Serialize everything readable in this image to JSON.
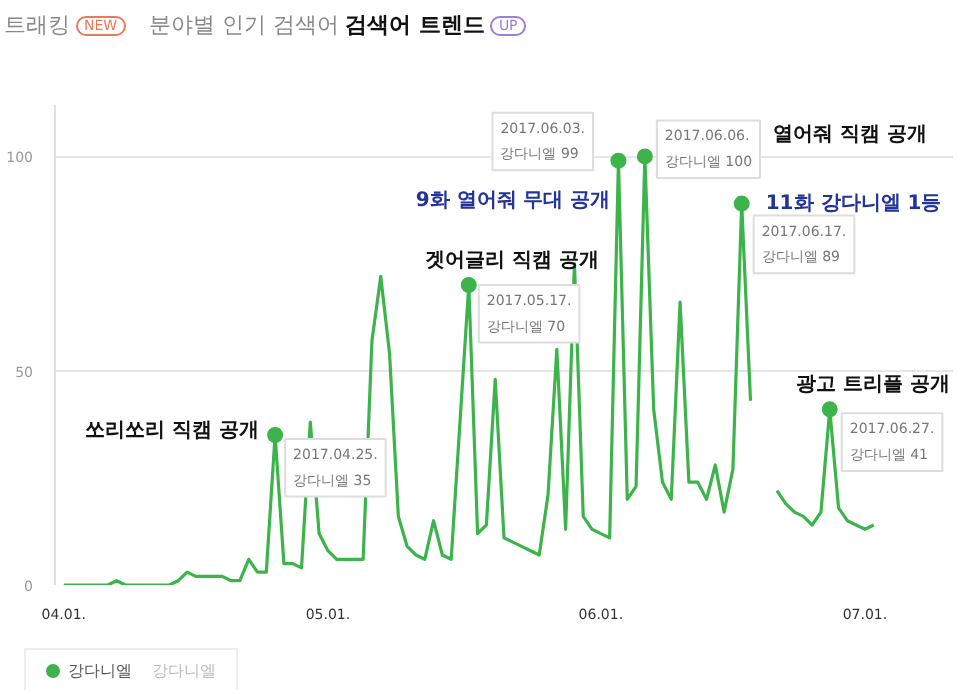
{
  "chart_data": {
    "type": "line",
    "x": [
      "2017-04-01",
      "2017-04-02",
      "2017-04-03",
      "2017-04-04",
      "2017-04-05",
      "2017-04-06",
      "2017-04-07",
      "2017-04-08",
      "2017-04-09",
      "2017-04-10",
      "2017-04-11",
      "2017-04-12",
      "2017-04-13",
      "2017-04-14",
      "2017-04-15",
      "2017-04-16",
      "2017-04-17",
      "2017-04-18",
      "2017-04-19",
      "2017-04-20",
      "2017-04-21",
      "2017-04-22",
      "2017-04-23",
      "2017-04-24",
      "2017-04-25",
      "2017-04-26",
      "2017-04-27",
      "2017-04-28",
      "2017-04-29",
      "2017-04-30",
      "2017-05-01",
      "2017-05-02",
      "2017-05-03",
      "2017-05-04",
      "2017-05-05",
      "2017-05-06",
      "2017-05-07",
      "2017-05-08",
      "2017-05-09",
      "2017-05-10",
      "2017-05-11",
      "2017-05-12",
      "2017-05-13",
      "2017-05-14",
      "2017-05-15",
      "2017-05-16",
      "2017-05-17",
      "2017-05-18",
      "2017-05-19",
      "2017-05-20",
      "2017-05-21",
      "2017-05-22",
      "2017-05-23",
      "2017-05-24",
      "2017-05-25",
      "2017-05-26",
      "2017-05-27",
      "2017-05-28",
      "2017-05-29",
      "2017-05-30",
      "2017-05-31",
      "2017-06-01",
      "2017-06-02",
      "2017-06-03",
      "2017-06-04",
      "2017-06-05",
      "2017-06-06",
      "2017-06-07",
      "2017-06-08",
      "2017-06-09",
      "2017-06-10",
      "2017-06-11",
      "2017-06-12",
      "2017-06-13",
      "2017-06-14",
      "2017-06-15",
      "2017-06-16",
      "2017-06-17",
      "2017-06-18",
      "2017-06-19",
      "2017-06-20",
      "2017-06-21",
      "2017-06-22",
      "2017-06-23",
      "2017-06-24",
      "2017-06-25",
      "2017-06-26",
      "2017-06-27",
      "2017-06-28",
      "2017-06-29",
      "2017-06-30",
      "2017-07-01",
      "2017-07-02"
    ],
    "series": [
      {
        "name": "강다니엘",
        "color": "#3cb44b",
        "values": [
          0,
          0,
          0,
          0,
          0,
          0,
          1,
          0,
          0,
          0,
          0,
          0,
          0,
          1,
          3,
          2,
          2,
          2,
          2,
          1,
          1,
          6,
          3,
          3,
          35,
          5,
          5,
          4,
          38,
          12,
          8,
          6,
          6,
          6,
          6,
          57,
          72,
          54,
          16,
          9,
          7,
          6,
          15,
          7,
          6,
          38,
          70,
          12,
          14,
          48,
          11,
          10,
          9,
          8,
          7,
          21,
          55,
          13,
          75,
          16,
          13,
          12,
          11,
          99,
          20,
          23,
          100,
          41,
          24,
          20,
          66,
          24,
          24,
          20,
          28,
          17,
          27,
          89,
          43,
          null,
          null,
          22,
          19,
          17,
          16,
          14,
          17,
          41,
          18,
          15,
          14,
          13,
          14
        ]
      }
    ],
    "xlim": [
      "2017-03-31",
      "2017-07-11"
    ],
    "xticks": [
      {
        "value": "2017-04-01",
        "label": "04.01."
      },
      {
        "value": "2017-05-01",
        "label": "05.01."
      },
      {
        "value": "2017-06-01",
        "label": "06.01."
      },
      {
        "value": "2017-07-01",
        "label": "07.01."
      }
    ],
    "ylim": [
      0,
      112
    ],
    "yticks": [
      0,
      50,
      100
    ],
    "grid": "y",
    "legend": "bottom left",
    "marker": "none",
    "line_style": "solid",
    "annotations": [
      "트래킹",
      "NEW",
      "분야별 인기 검색어",
      "검색어 트렌드",
      "UP",
      "강다니엘",
      {
        "text": "쏘리쏘리 직캠 공개",
        "x": "2017-04-25",
        "y": 35
      },
      {
        "text": "겟어글리 직캠 공개",
        "x": "2017-05-17",
        "y": 70
      },
      {
        "text": "9화 열어줘 무대 공개",
        "x": "2017-06-03",
        "y": 99
      },
      "열어줘 직캠 공개",
      {
        "text": "11화 강다니엘 1등",
        "x": "2017-06-17",
        "y": 89
      },
      {
        "text": "광고 트리플 공개",
        "x": "2017-06-27",
        "y": 41
      },
      {
        "text": "2017.04.25.\n강다니엘 35",
        "x": "2017-04-25",
        "y": 35
      },
      {
        "text": "2017.05.17.\n강다니엘 70",
        "x": "2017-05-17",
        "y": 70
      },
      {
        "text": "2017.06.03.\n강다니엘 99",
        "x": "2017-06-03",
        "y": 99
      },
      {
        "text": "2017.06.06.\n강다니엘 100",
        "x": "2017-06-06",
        "y": 100
      },
      {
        "text": "2017.06.17.\n강다니엘 89",
        "x": "2017-06-17",
        "y": 89
      },
      {
        "text": "2017.06.27.\n강다니엘 41",
        "x": "2017-06-27",
        "y": 41
      }
    ]
  }
}
